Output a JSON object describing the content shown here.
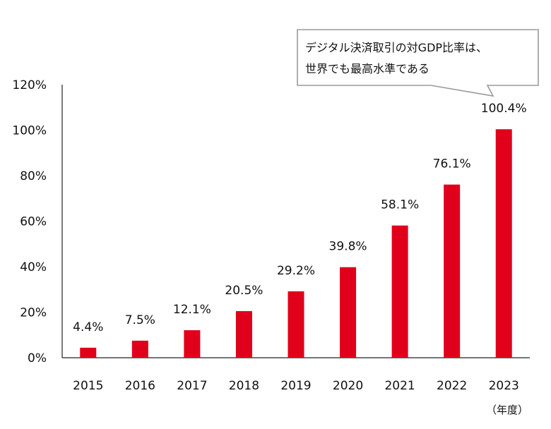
{
  "chart_data": {
    "type": "bar",
    "categories": [
      "2015",
      "2016",
      "2017",
      "2018",
      "2019",
      "2020",
      "2021",
      "2022",
      "2023"
    ],
    "values": [
      4.4,
      7.5,
      12.1,
      20.5,
      29.2,
      39.8,
      58.1,
      76.1,
      100.4
    ],
    "value_labels": [
      "4.4%",
      "7.5%",
      "12.1%",
      "20.5%",
      "29.2%",
      "39.8%",
      "58.1%",
      "76.1%",
      "100.4%"
    ],
    "ylim": [
      0,
      120
    ],
    "yticks": [
      0,
      20,
      40,
      60,
      80,
      100,
      120
    ],
    "ytick_labels": [
      "0%",
      "20%",
      "40%",
      "60%",
      "80%",
      "100%",
      "120%"
    ],
    "x_unit": "（年度）",
    "bar_color": "#E0001B",
    "grid": false,
    "legend": "none",
    "annotation": {
      "lines": [
        "デジタル決済取引の対GDP比率は、",
        "世界でも最高水準である"
      ],
      "points_to": "2023"
    }
  }
}
